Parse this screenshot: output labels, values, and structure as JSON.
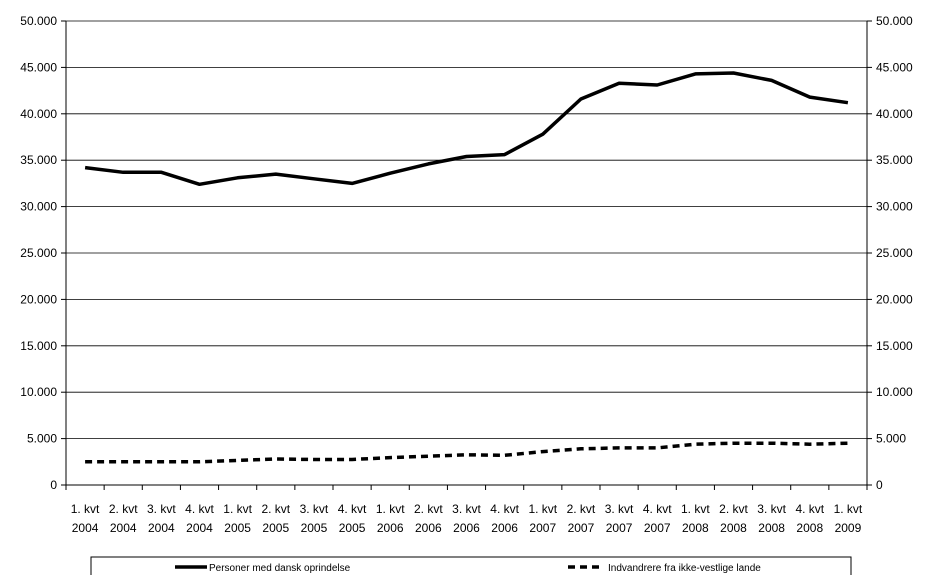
{
  "chart_data": {
    "type": "line",
    "title": "",
    "xlabel": "",
    "ylabel": "",
    "categories": [
      [
        "1. kvt",
        "2004"
      ],
      [
        "2. kvt",
        "2004"
      ],
      [
        "3. kvt",
        "2004"
      ],
      [
        "4. kvt",
        "2004"
      ],
      [
        "1. kvt",
        "2005"
      ],
      [
        "2. kvt",
        "2005"
      ],
      [
        "3. kvt",
        "2005"
      ],
      [
        "4. kvt",
        "2005"
      ],
      [
        "1. kvt",
        "2006"
      ],
      [
        "2. kvt",
        "2006"
      ],
      [
        "3. kvt",
        "2006"
      ],
      [
        "4. kvt",
        "2006"
      ],
      [
        "1. kvt",
        "2007"
      ],
      [
        "2. kvt",
        "2007"
      ],
      [
        "3. kvt",
        "2007"
      ],
      [
        "4. kvt",
        "2007"
      ],
      [
        "1. kvt",
        "2008"
      ],
      [
        "2. kvt",
        "2008"
      ],
      [
        "3. kvt",
        "2008"
      ],
      [
        "4. kvt",
        "2008"
      ],
      [
        "1. kvt",
        "2009"
      ]
    ],
    "ylim": [
      0,
      50000
    ],
    "yticks": [
      "0",
      "5.000",
      "10.000",
      "15.000",
      "20.000",
      "25.000",
      "30.000",
      "35.000",
      "40.000",
      "45.000",
      "50.000"
    ],
    "grid": true,
    "legend_position": "bottom",
    "series": [
      {
        "name": "Personer med dansk oprindelse",
        "style": "solid",
        "color": "#000000",
        "values": [
          34200,
          33700,
          33700,
          32400,
          33100,
          33500,
          33000,
          32500,
          33600,
          34600,
          35400,
          35600,
          37800,
          41600,
          43300,
          43100,
          44300,
          44400,
          43600,
          41800,
          41200
        ]
      },
      {
        "name": "Indvandrere fra ikke-vestlige lande",
        "style": "dashed",
        "color": "#000000",
        "values": [
          2500,
          2500,
          2500,
          2500,
          2650,
          2800,
          2750,
          2750,
          2950,
          3100,
          3250,
          3200,
          3600,
          3900,
          4000,
          4000,
          4400,
          4500,
          4500,
          4400,
          4500
        ]
      }
    ]
  }
}
